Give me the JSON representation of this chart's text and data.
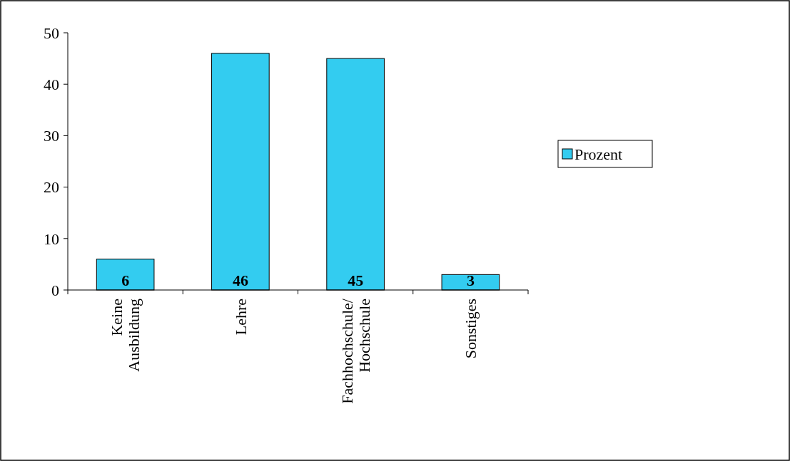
{
  "chart_data": {
    "type": "bar",
    "categories": [
      "Keine Ausbildung",
      "Lehre",
      "Fachhochschule/ Hochschule",
      "Sonstiges"
    ],
    "series": [
      {
        "name": "Prozent",
        "color": "#33ccf0",
        "values": [
          6,
          46,
          45,
          3
        ]
      }
    ],
    "ylim": [
      0,
      50
    ],
    "yticks": [
      0,
      10,
      20,
      30,
      40,
      50
    ],
    "data_labels": true,
    "legend": "right",
    "grid": false
  }
}
